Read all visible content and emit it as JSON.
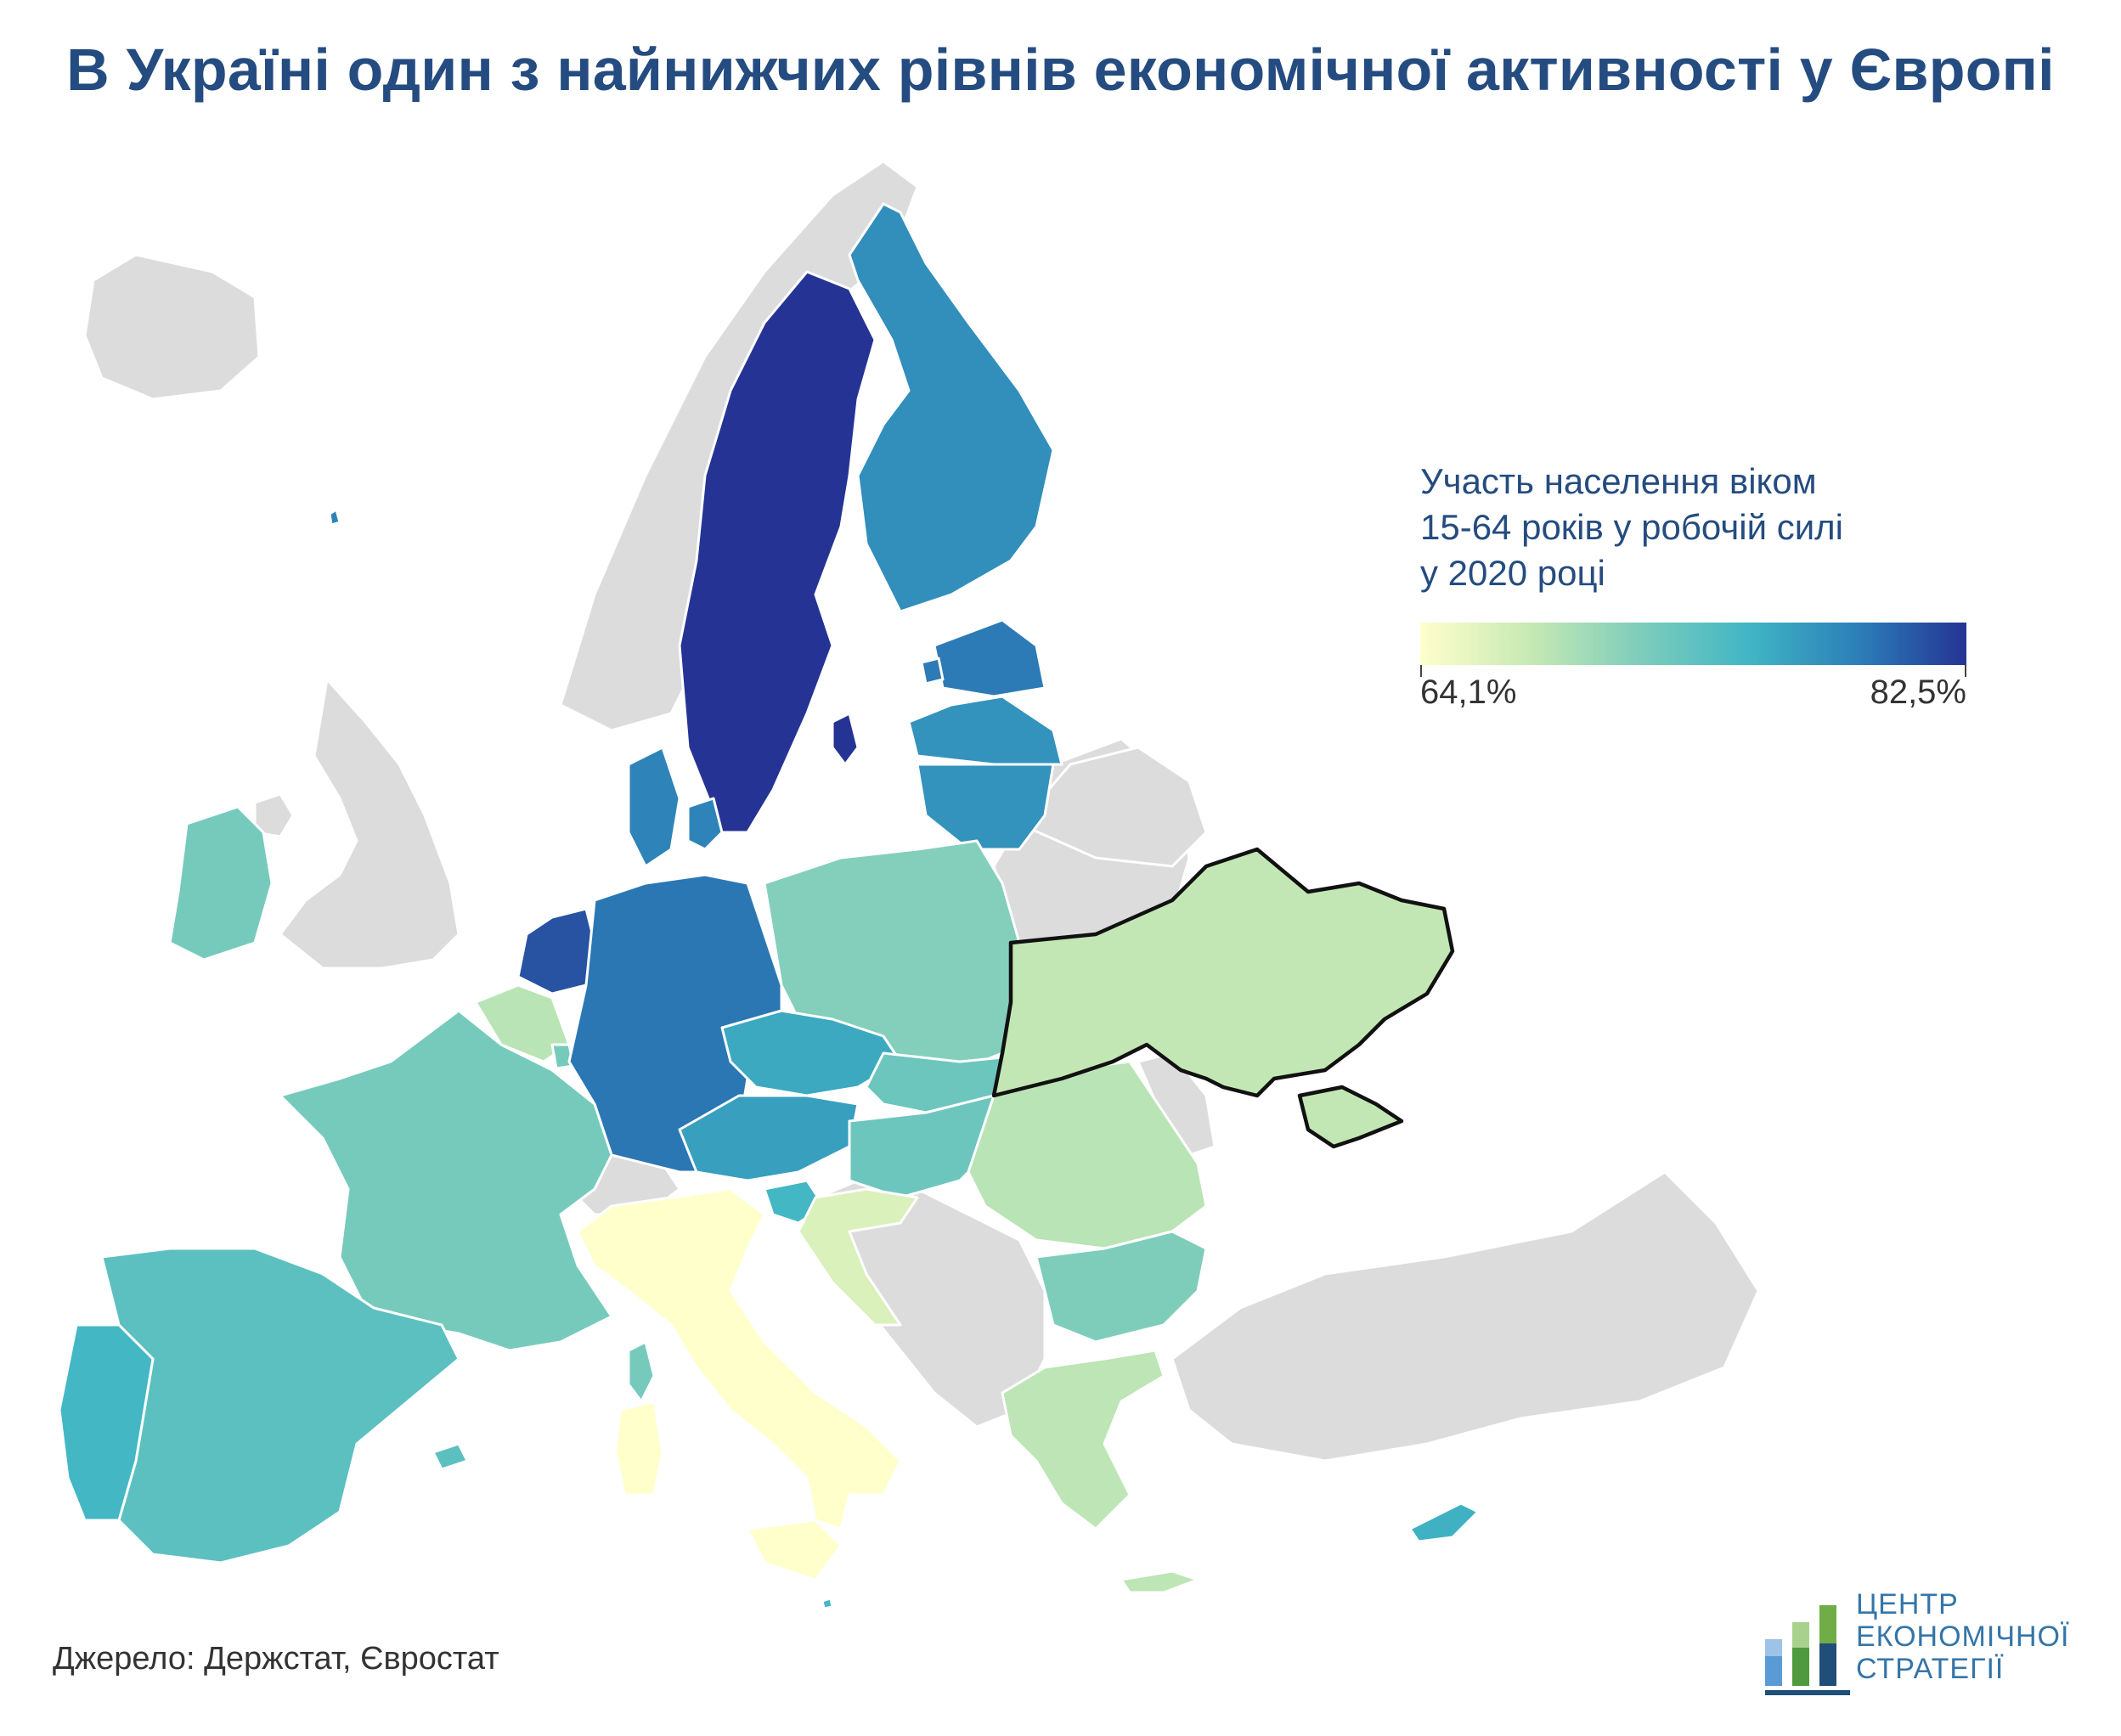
{
  "title": "В Україні один з найнижчих рівнів економічної активності у Європі",
  "legend": {
    "title_lines": [
      "Участь населення віком",
      "15-64 років у робочій силі",
      "у 2020 році"
    ],
    "min_label": "64,1%",
    "max_label": "82,5%",
    "min_value": 64.1,
    "max_value": 82.5,
    "color_ramp": [
      "#ffffcc",
      "#c7e9b4",
      "#7fcdbb",
      "#41b6c4",
      "#2c7fb8",
      "#253494"
    ],
    "no_data_color": "#dcdcdc"
  },
  "source": "Джерело: Держстат, Євростат",
  "logo": {
    "lines": [
      "ЦЕНТР",
      "ЕКОНОМІЧНОЇ",
      "СТРАТЕГІЇ"
    ]
  },
  "countries": {
    "sweden": 82.5,
    "netherlands": 81.0,
    "germany": 79.2,
    "denmark": 78.5,
    "finland": 77.8,
    "estonia": 79.0,
    "latvia": 77.5,
    "lithuania": 77.5,
    "austria": 76.7,
    "czechia": 76.0,
    "slovenia": 75.0,
    "cyprus": 75.5,
    "spain": 73.5,
    "portugal": 75.0,
    "malta": 75.0,
    "ireland": 72.0,
    "france": 72.0,
    "poland": 71.2,
    "slovakia": 72.5,
    "hungary": 72.5,
    "estonia_islands": 79.0,
    "bulgaria": 71.5,
    "latvia_extra": 77.5,
    "luxembourg": 72.0,
    "romania": 68.5,
    "belgium": 68.5,
    "greece": 68.3,
    "croatia": 66.5,
    "ukraine": 68.0,
    "italy": 64.1
  }
}
